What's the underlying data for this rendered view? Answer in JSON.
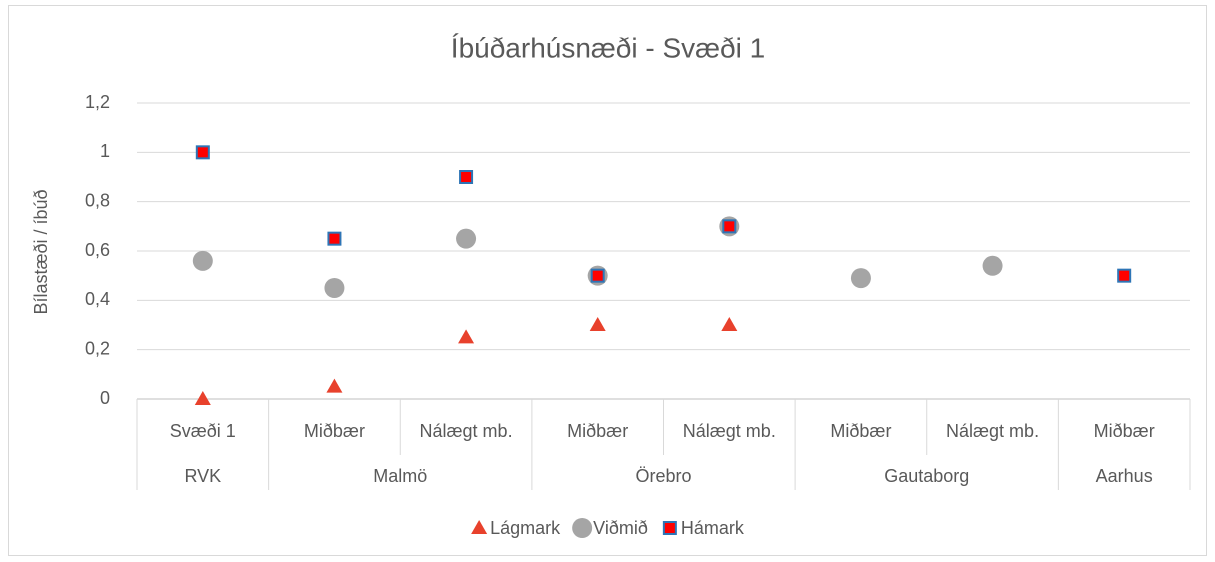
{
  "chart_data": {
    "type": "scatter",
    "title": "Íbúðarhúsnæði - Svæði 1",
    "ylabel": "Bílastæði / íbúð",
    "categories": [
      "Svæði 1",
      "Miðbær",
      "Nálægt mb.",
      "Miðbær",
      "Nálægt mb.",
      "Miðbær",
      "Nálægt mb.",
      "Miðbær"
    ],
    "groups": [
      "RVK",
      "Malmö",
      null,
      "Örebro",
      null,
      "Gautaborg",
      null,
      "Aarhus"
    ],
    "series": [
      {
        "name": "Lágmark",
        "color": "#e8412c",
        "marker": "triangle",
        "values": [
          0,
          0.05,
          0.25,
          0.3,
          0.3,
          null,
          null,
          null
        ]
      },
      {
        "name": "Viðmið",
        "color": "#a5a5a5",
        "marker": "circle",
        "values": [
          0.56,
          0.45,
          0.65,
          0.5,
          0.7,
          0.49,
          0.54,
          null
        ]
      },
      {
        "name": "Hámark",
        "color": "#ff0000",
        "edgecolor": "#2e75b6",
        "marker": "square",
        "values": [
          1,
          0.65,
          0.9,
          0.5,
          0.7,
          null,
          null,
          0.5
        ]
      }
    ],
    "ylim": [
      0,
      1.2
    ],
    "yticks": [
      0,
      {
        "value": 0.2,
        "label": "0,2"
      },
      {
        "value": 0.4,
        "label": "0,4"
      },
      {
        "value": 0.6,
        "label": "0,6"
      },
      {
        "value": 0.8,
        "label": "0,8"
      },
      1,
      {
        "value": 1.2,
        "label": "1,2"
      }
    ],
    "grid": true,
    "legend": "bottom"
  }
}
